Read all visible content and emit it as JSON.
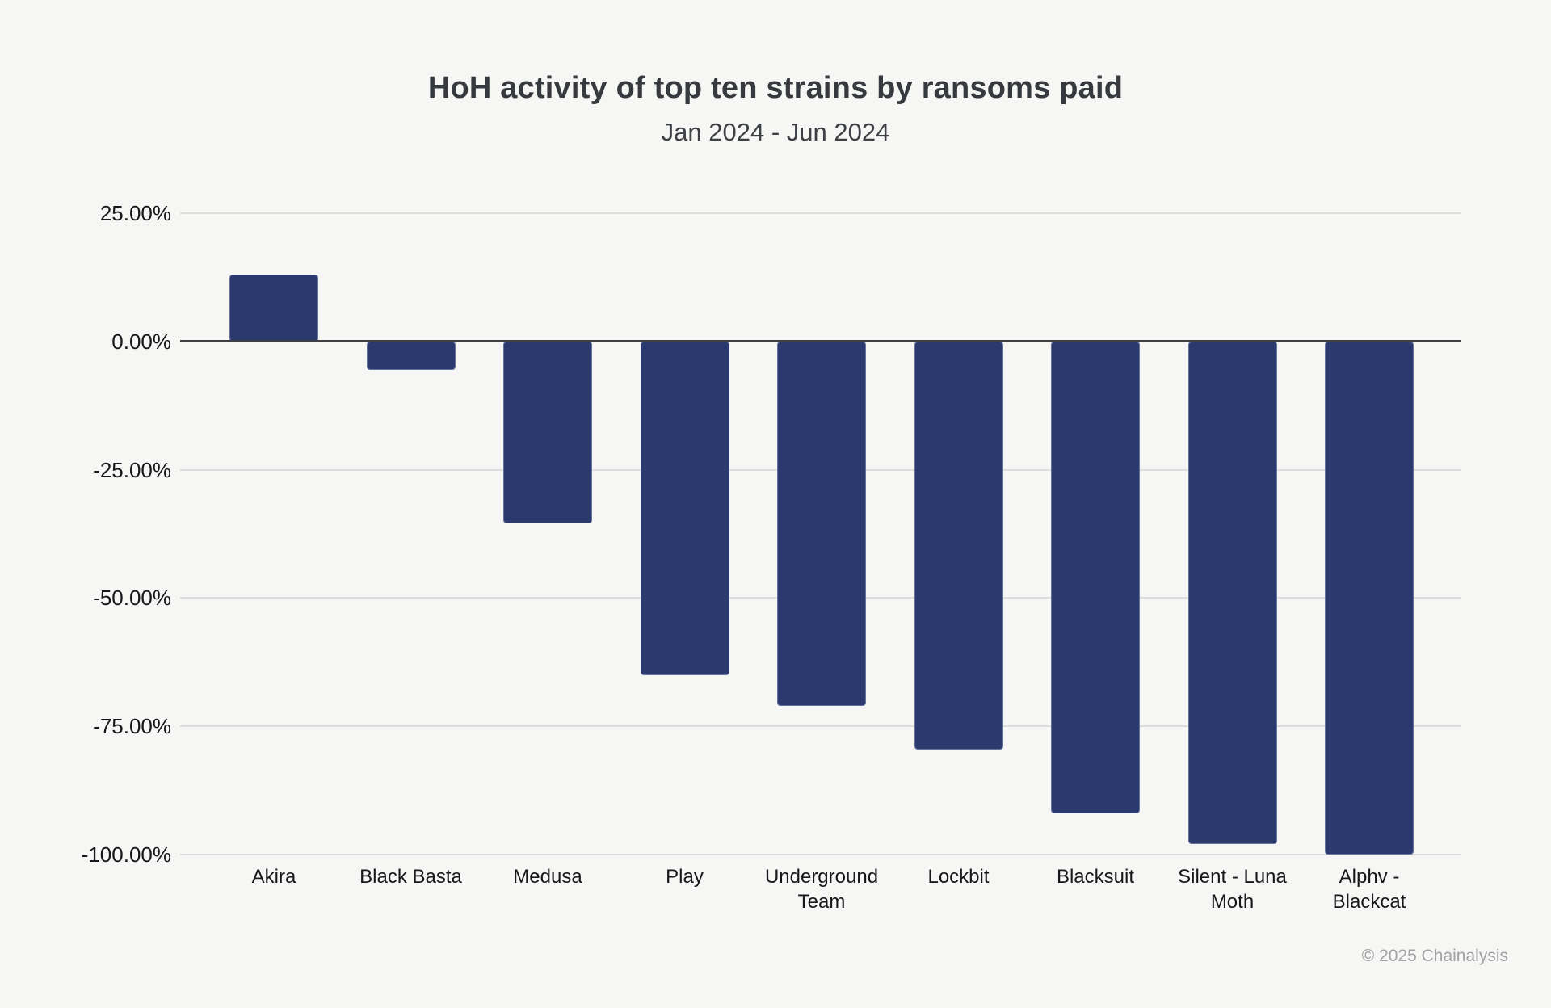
{
  "header": {
    "title": "HoH activity of top ten strains by ransoms paid",
    "subtitle": "Jan 2024 - Jun 2024"
  },
  "footer": {
    "copyright": "© 2025 Chainalysis"
  },
  "colors": {
    "background": "#f6f6f5",
    "bar": "#2b3a6e",
    "zero_line": "#404040",
    "gridline": "#dddddd",
    "tick_label": "#17181b",
    "footer_text": "#a1a1a3"
  },
  "chart_data": {
    "type": "bar",
    "title": "HoH activity of top ten strains by ransoms paid",
    "subtitle": "Jan 2024 - Jun 2024",
    "xlabel": "",
    "ylabel": "",
    "unit": "%",
    "categories": [
      "Akira",
      "Black Basta",
      "Medusa",
      "Play",
      "Underground Team",
      "Lockbit",
      "Blacksuit",
      "Silent - Luna Moth",
      "Alphv - Blackcat"
    ],
    "values": [
      13.0,
      -5.6,
      -35.5,
      -65.0,
      -71.0,
      -79.5,
      -92.0,
      -98.0,
      -100.0
    ],
    "ylim": [
      -100,
      25
    ],
    "y_ticks": [
      25,
      0,
      -25,
      -50,
      -75,
      -100
    ],
    "y_tick_labels": [
      "25.00%",
      "0.00%",
      "-25.00%",
      "-50.00%",
      "-75.00%",
      "-100.00%"
    ],
    "grid": "horizontal",
    "legend": "none",
    "bar_color": "#2b3a6e"
  }
}
